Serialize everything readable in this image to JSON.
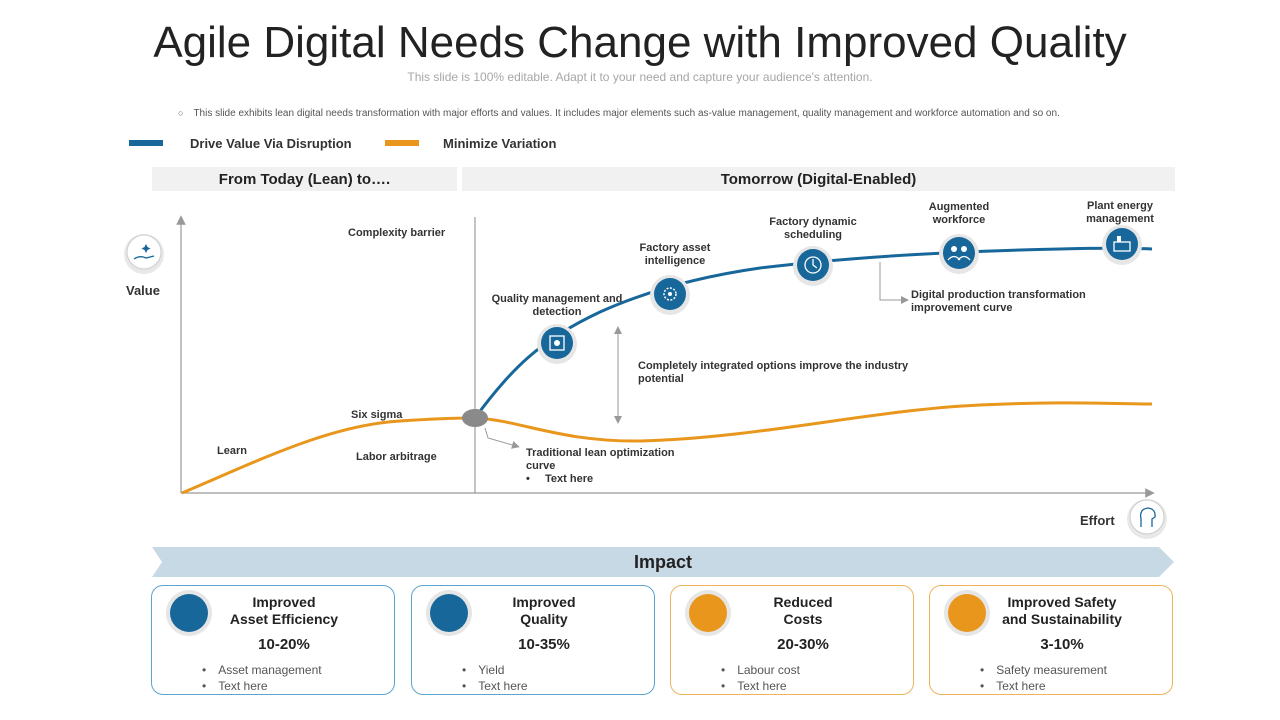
{
  "title": "Agile Digital Needs Change with Improved Quality",
  "subtitle": "This slide is 100% editable. Adapt it to your need and capture your audience's attention.",
  "note": "This slide exhibits lean digital needs transformation with major efforts and values. It includes major elements such as-value management, quality management and workforce automation and so on.",
  "colors": {
    "blue": "#17679a",
    "orange": "#e9961c",
    "impact_band": "#c8d9e6"
  },
  "legend": [
    {
      "label": "Drive Value Via Disruption",
      "color": "#17679a"
    },
    {
      "label": "Minimize Variation",
      "color": "#e9961c"
    }
  ],
  "sections": {
    "today": "From Today (Lean) to….",
    "tomorrow": "Tomorrow (Digital-Enabled)"
  },
  "axes": {
    "y_label": "Value",
    "x_label": "Effort",
    "y_icon": "hand-sparkle-icon",
    "x_icon": "effort-head-icon"
  },
  "labels": {
    "complexity_barrier": "Complexity barrier",
    "six_sigma": "Six sigma",
    "learn": "Learn",
    "labor_arbitrage": "Labor arbitrage",
    "traditional_line1": "Traditional lean optimization",
    "traditional_line2": "curve",
    "traditional_bullet": "Text here",
    "integrated_line1": "Completely integrated options improve the industry",
    "integrated_line2": "potential",
    "digital_line1": "Digital production transformation",
    "digital_line2": "improvement curve"
  },
  "milestones": [
    {
      "line1": "Quality management and",
      "line2": "detection",
      "icon": "quality-scan-icon"
    },
    {
      "line1": "Factory asset",
      "line2": "intelligence",
      "icon": "factory-gear-icon"
    },
    {
      "line1": "Factory dynamic",
      "line2": "scheduling",
      "icon": "clock-gear-icon"
    },
    {
      "line1": "Augmented",
      "line2": "workforce",
      "icon": "workers-icon"
    },
    {
      "line1": "Plant energy",
      "line2": "management",
      "icon": "plant-energy-icon"
    }
  ],
  "impact": {
    "label": "Impact",
    "cards": [
      {
        "title1": "Improved",
        "title2": "Asset Efficiency",
        "value": "10-20%",
        "bullets": [
          "Asset management",
          "Text here"
        ],
        "theme": "blue",
        "icon": "target-gear-icon"
      },
      {
        "title1": "Improved",
        "title2": "Quality",
        "value": "10-35%",
        "bullets": [
          "Yield",
          "Text here"
        ],
        "theme": "blue",
        "icon": "quality-chart-icon"
      },
      {
        "title1": "Reduced",
        "title2": "Costs",
        "value": "20-30%",
        "bullets": [
          "Labour cost",
          "Text here"
        ],
        "theme": "orange",
        "icon": "coins-icon"
      },
      {
        "title1": "Improved Safety",
        "title2": "and Sustainability",
        "value": "3-10%",
        "bullets": [
          "Safety measurement",
          "Text here"
        ],
        "theme": "orange",
        "icon": "safety-hand-icon"
      }
    ]
  }
}
